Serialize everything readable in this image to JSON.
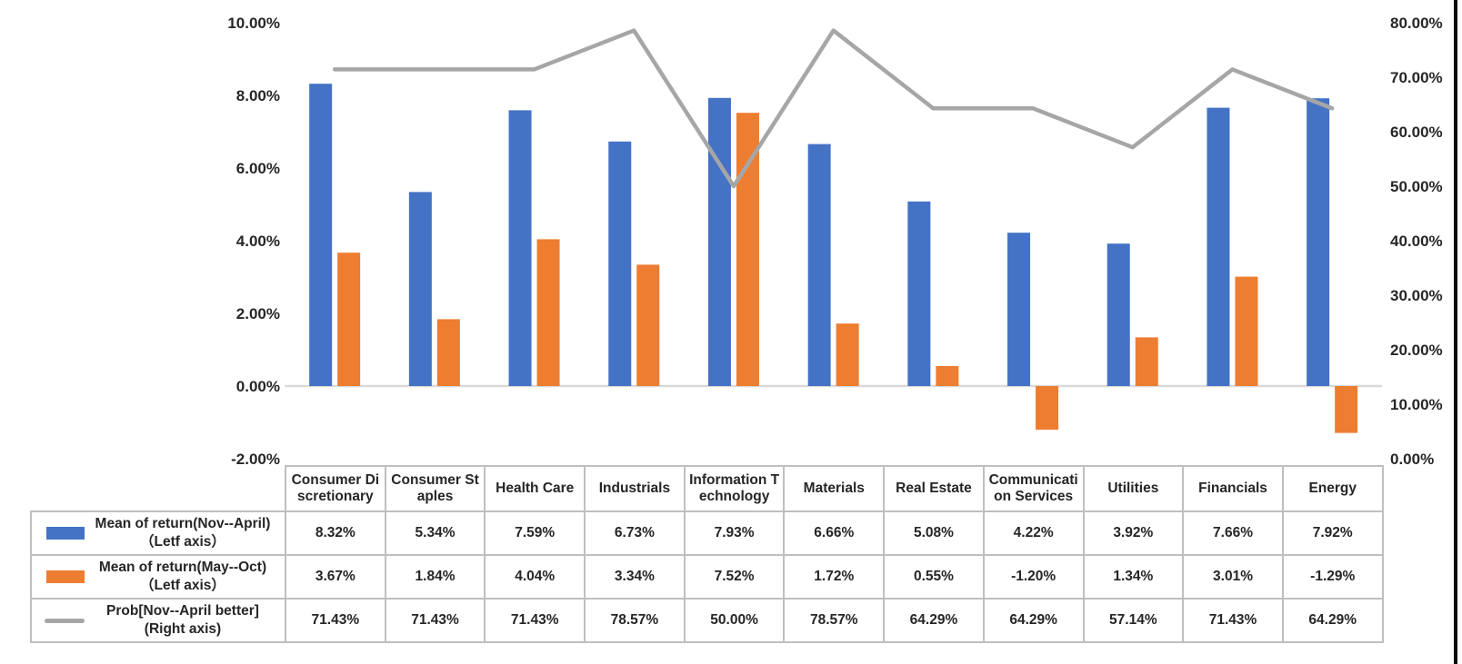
{
  "chart_data": {
    "type": "bar",
    "subtype": "combo-bar-line-dual-axis",
    "title": "",
    "categories": [
      "Consumer Discretionary",
      "Consumer Staples",
      "Health Care",
      "Industrials",
      "Information Technology",
      "Materials",
      "Real Estate",
      "Communication Services",
      "Utilities",
      "Financials",
      "Energy"
    ],
    "series": [
      {
        "name": "Mean of return(Nov--April)",
        "axis_note": "（Letf axis）",
        "type": "bar",
        "axis": "left",
        "color": "#4472C4",
        "values": [
          8.32,
          5.34,
          7.59,
          6.73,
          7.93,
          6.66,
          5.08,
          4.22,
          3.92,
          7.66,
          7.92
        ]
      },
      {
        "name": "Mean of return(May--Oct)",
        "axis_note": "（Letf axis）",
        "type": "bar",
        "axis": "left",
        "color": "#ED7D31",
        "values": [
          3.67,
          1.84,
          4.04,
          3.34,
          7.52,
          1.72,
          0.55,
          -1.2,
          1.34,
          3.01,
          -1.29
        ]
      },
      {
        "name": "Prob[Nov--April better]",
        "axis_note": "(Right axis)",
        "type": "line",
        "axis": "right",
        "color": "#A6A6A6",
        "values": [
          71.43,
          71.43,
          71.43,
          78.57,
          50,
          78.57,
          64.29,
          64.29,
          57.14,
          71.43,
          64.29
        ]
      }
    ],
    "left_axis": {
      "min": -2,
      "max": 10,
      "step": 2,
      "ticks": [
        "10.00%",
        "8.00%",
        "6.00%",
        "4.00%",
        "2.00%",
        "0.00%",
        "-2.00%"
      ]
    },
    "right_axis": {
      "min": 0,
      "max": 80,
      "step": 10,
      "ticks": [
        "80.00%",
        "70.00%",
        "60.00%",
        "50.00%",
        "40.00%",
        "30.00%",
        "20.00%",
        "10.00%",
        "0.00%"
      ]
    },
    "grid": false,
    "legend_position": "table-left-column",
    "has_data_table": true,
    "table_value_format": "0.00%"
  },
  "colors": {
    "bar_blue": "#4472C4",
    "bar_orange": "#ED7D31",
    "line_gray": "#A6A6A6",
    "axis_line": "#D9D9D9",
    "table_border": "#BFBFBF",
    "text": "#262626"
  }
}
